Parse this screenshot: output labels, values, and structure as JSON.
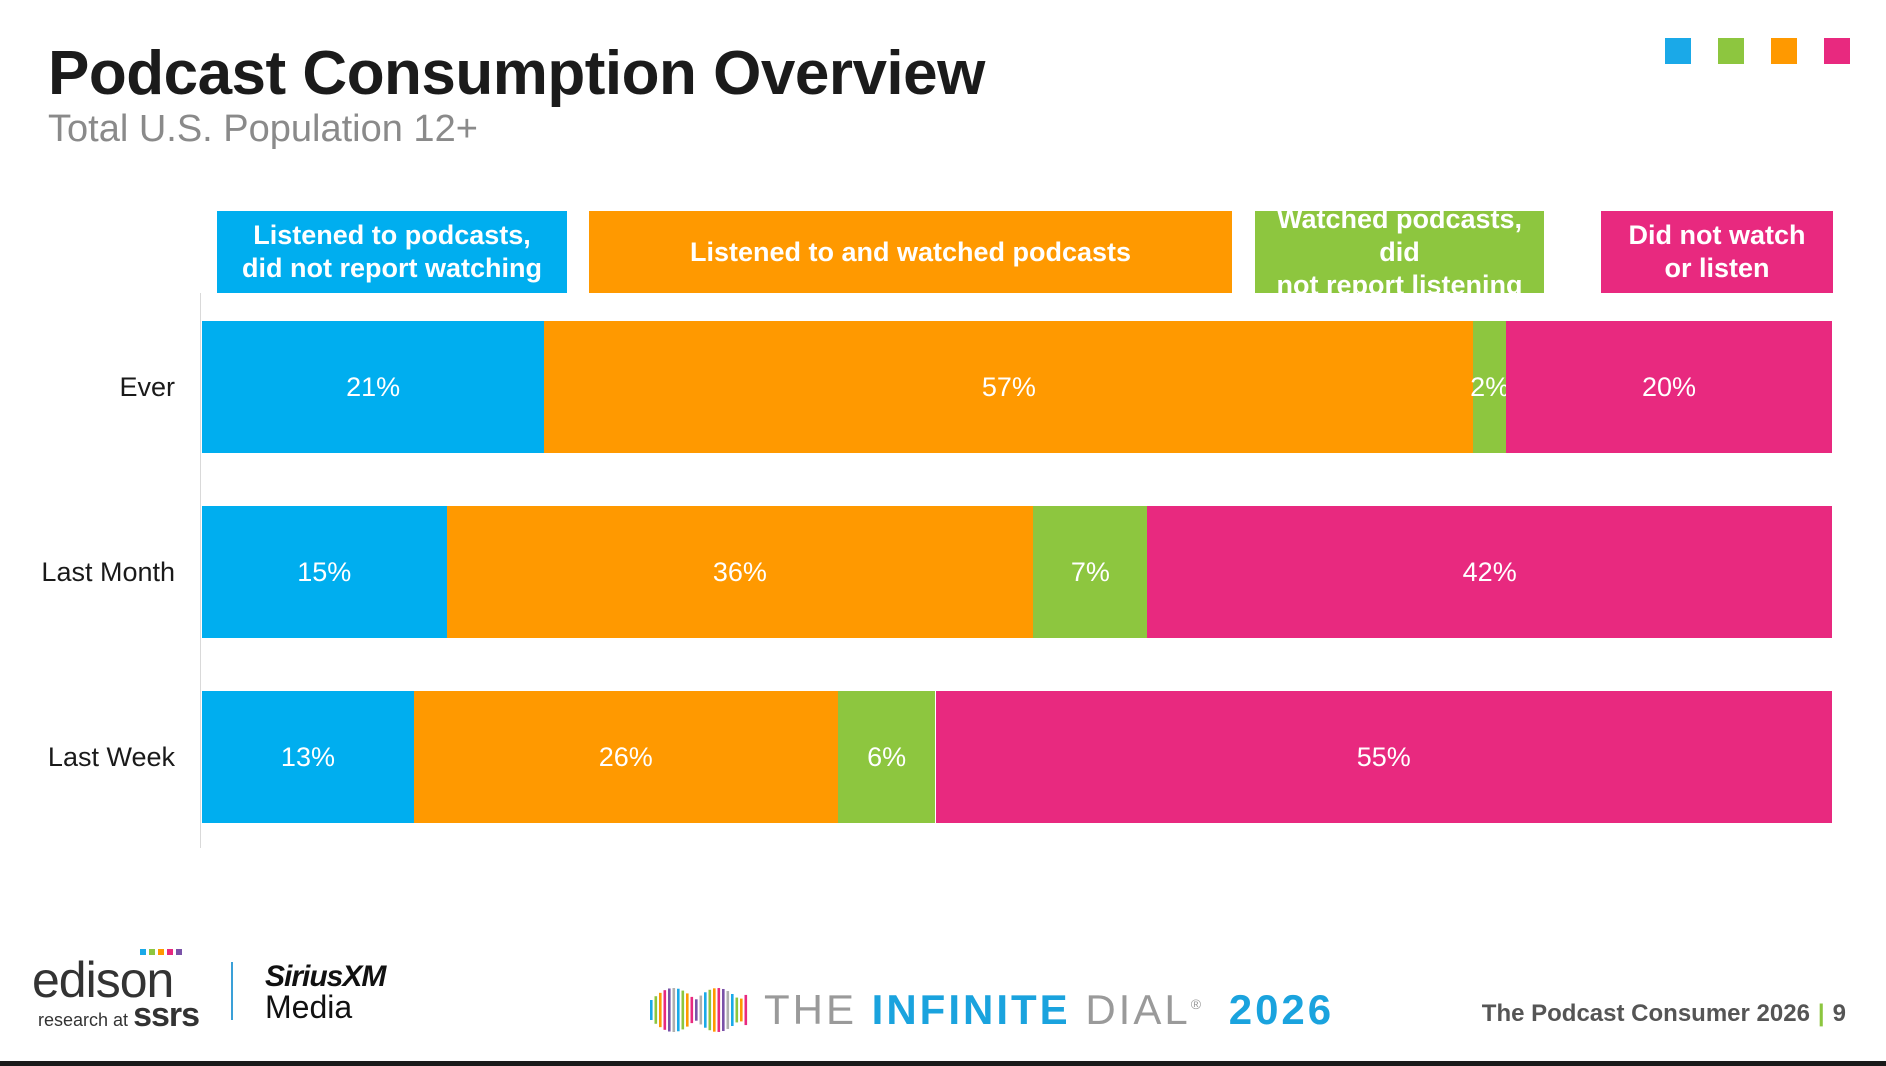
{
  "header": {
    "title": "Podcast Consumption Overview",
    "subtitle": "Total U.S. Population 12+"
  },
  "colors": {
    "blue": "#00AEEF",
    "orange": "#FF9900",
    "green": "#8DC63F",
    "pink": "#E8297F"
  },
  "legend_square_colors": [
    "#1AA9E8",
    "#8DC63F",
    "#FF9900",
    "#E8297F"
  ],
  "chart_data": {
    "type": "bar",
    "orientation": "horizontal",
    "stacked": true,
    "percent": true,
    "categories": [
      "Ever",
      "Last Month",
      "Last Week"
    ],
    "series": [
      {
        "name": "Listened to podcasts,\ndid not report watching",
        "color": "#00AEEF",
        "values": [
          21,
          15,
          13
        ]
      },
      {
        "name": "Listened to and watched podcasts",
        "color": "#FF9900",
        "values": [
          57,
          36,
          26
        ]
      },
      {
        "name": "Watched podcasts, did\nnot report listening",
        "color": "#8DC63F",
        "values": [
          2,
          7,
          6
        ]
      },
      {
        "name": "Did not watch\nor listen",
        "color": "#E8297F",
        "values": [
          20,
          42,
          55
        ]
      }
    ],
    "xlim": [
      0,
      100
    ],
    "grid": false,
    "legend_position": "top",
    "value_suffix": "%"
  },
  "footer": {
    "edison_word": "edison",
    "edison_sub_prefix": "research at",
    "edison_sub_brand": "ssrs",
    "sirius_word": "SiriusXM",
    "sirius_media": "Media",
    "dial_the": "THE",
    "dial_infinite": "INFINITE",
    "dial_dial": "DIAL",
    "dial_reg": "®",
    "dial_year": "2026",
    "report_name": "The Podcast Consumer 2026",
    "separator": "|",
    "page_number": "9"
  }
}
